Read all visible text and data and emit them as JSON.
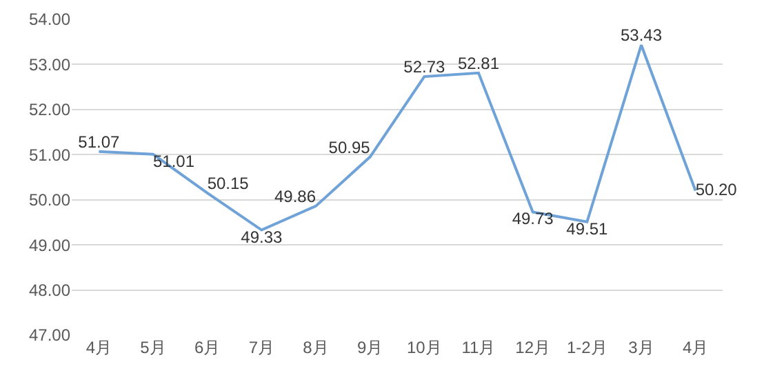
{
  "chart_data": {
    "type": "line",
    "categories": [
      "4月",
      "5月",
      "6月",
      "7月",
      "8月",
      "9月",
      "10月",
      "11月",
      "12月",
      "1-2月",
      "3月",
      "4月"
    ],
    "series": [
      {
        "color": "#6fa3d8",
        "values": [
          51.07,
          51.01,
          50.15,
          49.33,
          49.86,
          50.95,
          52.73,
          52.81,
          49.73,
          49.51,
          53.43,
          50.2
        ],
        "value_labels": [
          "51.07",
          "51.01",
          "50.15",
          "49.33",
          "49.86",
          "50.95",
          "52.73",
          "52.81",
          "49.73",
          "49.51",
          "53.43",
          "50.20"
        ]
      }
    ],
    "ylim": [
      47,
      54
    ],
    "yticks": [
      {
        "value": 47,
        "label": "47.00"
      },
      {
        "value": 48,
        "label": "48.00"
      },
      {
        "value": 49,
        "label": "49.00"
      },
      {
        "value": 50,
        "label": "50.00"
      },
      {
        "value": 51,
        "label": "51.00"
      },
      {
        "value": 52,
        "label": "52.00"
      },
      {
        "value": 53,
        "label": "53.00"
      },
      {
        "value": 54,
        "label": "54.00"
      }
    ],
    "grid": "y",
    "marker": "none",
    "line_style": "solid"
  }
}
